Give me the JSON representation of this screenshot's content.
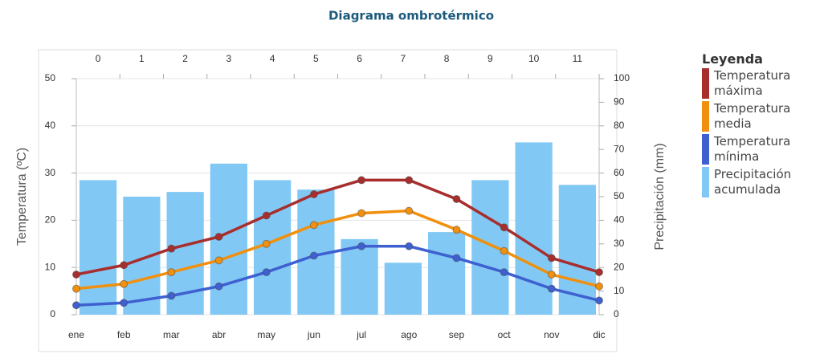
{
  "chart_data": {
    "type": "combo",
    "title": "Diagrama ombrotérmico",
    "ylabel": "Temperatura (ºC)",
    "y2label": "Precipitación (mm)",
    "legend_title": "Leyenda",
    "categories": [
      "ene",
      "feb",
      "mar",
      "abr",
      "may",
      "jun",
      "jul",
      "ago",
      "sep",
      "oct",
      "nov",
      "dic"
    ],
    "x2ticks": [
      0,
      1,
      2,
      3,
      4,
      5,
      6,
      7,
      8,
      9,
      10,
      11
    ],
    "ylim": [
      0,
      50
    ],
    "yticks": [
      0,
      10,
      20,
      30,
      40,
      50
    ],
    "y2lim": [
      0,
      100
    ],
    "y2ticks": [
      0,
      10,
      20,
      30,
      40,
      50,
      60,
      70,
      80,
      90,
      100
    ],
    "grid": true,
    "legend": "right",
    "series": [
      {
        "name": "Temperatura máxima",
        "type": "line",
        "color": "#a82e2e",
        "values": [
          8.5,
          10.5,
          14,
          16.5,
          21,
          25.5,
          28.5,
          28.5,
          24.5,
          18.5,
          12,
          9
        ]
      },
      {
        "name": "Temperatura media",
        "type": "line",
        "color": "#f0900e",
        "values": [
          5.5,
          6.5,
          9,
          11.5,
          15,
          19,
          21.5,
          22,
          18,
          13.5,
          8.5,
          6
        ]
      },
      {
        "name": "Temperatura mínima",
        "type": "line",
        "color": "#3e60d0",
        "values": [
          2,
          2.5,
          4,
          6,
          9,
          12.5,
          14.5,
          14.5,
          12,
          9,
          5.5,
          3
        ]
      },
      {
        "name": "Precipitación acumulada",
        "type": "bar",
        "axis": "y2",
        "color": "#82c8f4",
        "values": [
          57,
          50,
          52,
          64,
          57,
          53,
          32,
          22,
          35,
          57,
          73,
          55
        ]
      }
    ]
  }
}
